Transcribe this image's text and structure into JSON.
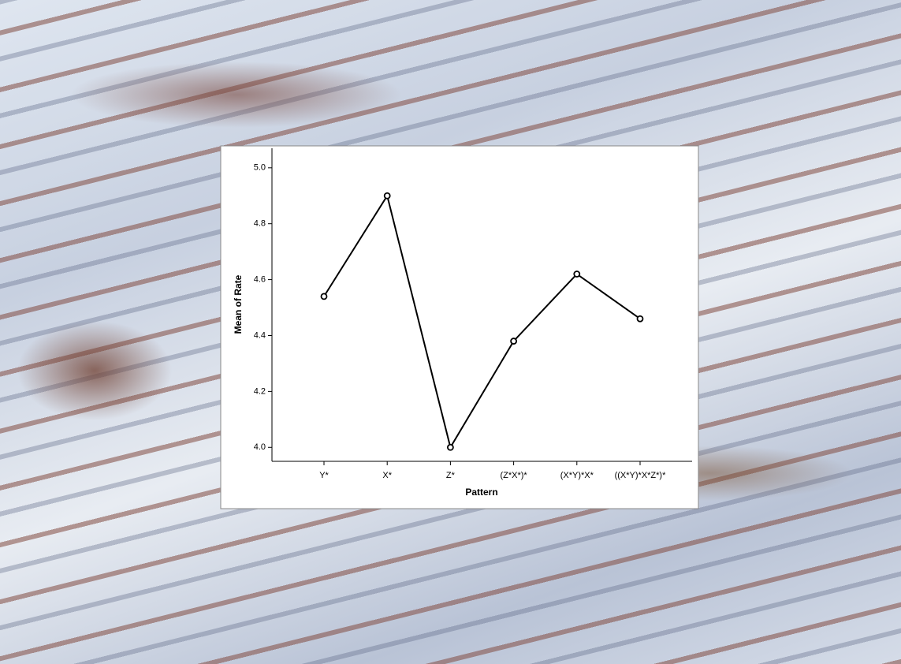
{
  "chart_data": {
    "type": "line",
    "x_label": "Pattern",
    "y_label": "Mean of Rate",
    "categories": [
      "Y*",
      "X*",
      "Z*",
      "(Z*X*)*",
      "(X*Y)*X*",
      "((X*Y)*X*Z*)*"
    ],
    "values": [
      4.54,
      4.9,
      4.0,
      4.38,
      4.62,
      4.46
    ],
    "color": "#000000",
    "ylim": [
      3.95,
      5.07
    ],
    "yticks": [
      {
        "value": 4,
        "label": "4.0"
      },
      4.2,
      4.4,
      4.6,
      4.8,
      {
        "value": 5,
        "label": "5.0"
      }
    ]
  }
}
